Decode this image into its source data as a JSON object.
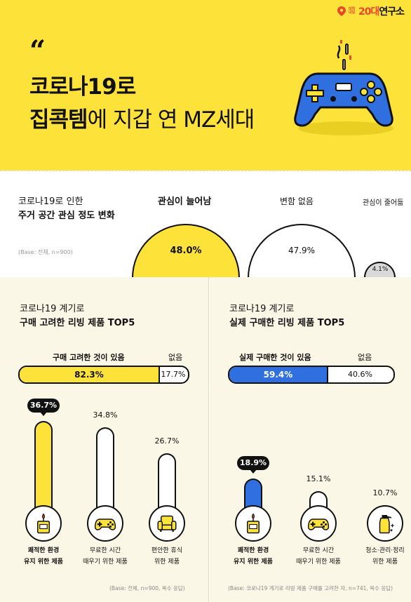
{
  "brand": {
    "line1": "대학내일",
    "name_a": "20대",
    "name_b": "연구소"
  },
  "header": {
    "quote_mark": "“",
    "line1": "코로나19로",
    "line2_bold": "집콕템",
    "line2_rest": "에 지갑 연 MZ세대"
  },
  "interest": {
    "title_line1": "코로나19로 인한",
    "title_line2": "주거 공간 관심 정도 변화",
    "base": "(Base: 전체, n=900)",
    "chart_data": {
      "type": "bar",
      "categories": [
        "관심이 늘어남",
        "변함 없음",
        "관심이 줄어듦"
      ],
      "values": [
        48.0,
        47.9,
        4.1
      ],
      "labels": [
        "48.0%",
        "47.9%",
        "4.1%"
      ],
      "colors": [
        "#fde23a",
        "#ffffff",
        "#d9d9d9"
      ]
    }
  },
  "left_panel": {
    "title_line1": "코로나19 계기로",
    "title_line2": "구매 고려한 리빙 제품 TOP5",
    "bar_head": "구매 고려한 것이 있음",
    "bar_none": "없음",
    "chart_data_bar": {
      "type": "bar",
      "categories": [
        "구매 고려한 것이 있음",
        "없음"
      ],
      "values": [
        82.3,
        17.7
      ],
      "labels": [
        "82.3%",
        "17.7%"
      ]
    },
    "items_chart": {
      "type": "bar",
      "values": [
        36.7,
        34.8,
        26.7
      ],
      "labels": [
        "36.7%",
        "34.8%",
        "26.7%"
      ],
      "categories": [
        [
          "쾌적한 환경",
          "유지 위한 제품"
        ],
        [
          "무료한 시간",
          "때우기 위한 제품"
        ],
        [
          "편안한 휴식",
          "위한 제품"
        ]
      ],
      "icons": [
        "candle-icon",
        "gamepad-icon",
        "armchair-icon"
      ]
    },
    "base": "(Base: 전체, n=900, 복수 응답)"
  },
  "right_panel": {
    "title_line1": "코로나19 계기로",
    "title_line2": "실제 구매한 리빙 제품 TOP5",
    "bar_head": "실제 구매한 것이 있음",
    "bar_none": "없음",
    "chart_data_bar": {
      "type": "bar",
      "categories": [
        "실제 구매한 것이 있음",
        "없음"
      ],
      "values": [
        59.4,
        40.6
      ],
      "labels": [
        "59.4%",
        "40.6%"
      ]
    },
    "items_chart": {
      "type": "bar",
      "values": [
        18.9,
        15.1,
        10.7
      ],
      "labels": [
        "18.9%",
        "15.1%",
        "10.7%"
      ],
      "categories": [
        [
          "쾌적한 환경",
          "유지 위한 제품"
        ],
        [
          "무료한 시간",
          "때우기 위한 제품"
        ],
        [
          "청소·관리·정리",
          "위한 제품"
        ]
      ],
      "icons": [
        "candle-icon",
        "gamepad-icon",
        "spray-bottle-icon"
      ]
    },
    "base": "(Base: 코로나19 계기로 리빙 제품 구매를 고려한 자, n=741, 복수 응답)"
  },
  "colors": {
    "yellow": "#fde23a",
    "blue": "#2f6fe0",
    "cream": "#fbf7e6",
    "black": "#111111"
  }
}
